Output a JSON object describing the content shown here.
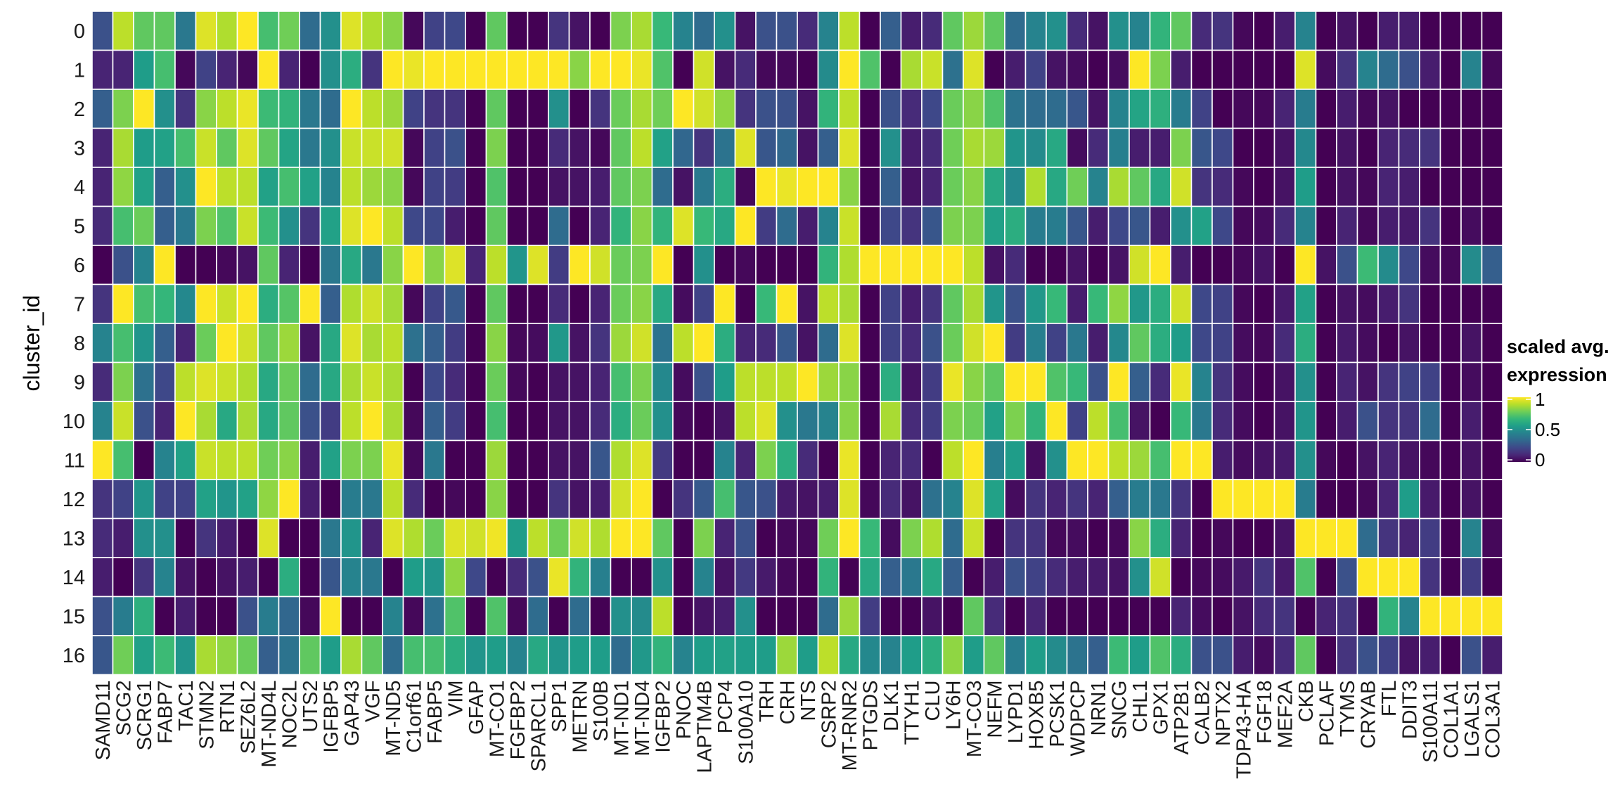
{
  "chart_data": {
    "type": "heatmap",
    "title": "",
    "xlabel": "",
    "ylabel": "cluster_id",
    "colormap": "viridis",
    "colormap_stops": [
      "#440154",
      "#482878",
      "#3e4989",
      "#31688e",
      "#26828e",
      "#1f9e89",
      "#35b779",
      "#6ece58",
      "#b5de2b",
      "#fde725"
    ],
    "cell_border_color": "#ffffff",
    "value_range": [
      0,
      1
    ],
    "legend": {
      "title_line1": "scaled avg.",
      "title_line2": "expression",
      "placement": "right",
      "ticks": [
        {
          "value": 1,
          "label": "1"
        },
        {
          "value": 0.5,
          "label": "0.5"
        },
        {
          "value": 0,
          "label": "0"
        }
      ]
    },
    "columns": [
      "SAMD11",
      "SCG2",
      "SCRG1",
      "FABP7",
      "TAC1",
      "STMN2",
      "RTN1",
      "SEZ6L2",
      "MT-ND4L",
      "NOC2L",
      "UTS2",
      "IGFBP5",
      "GAP43",
      "VGF",
      "MT-ND5",
      "C1orf61",
      "FABP5",
      "VIM",
      "GFAP",
      "MT-CO1",
      "FGFBP2",
      "SPARCL1",
      "SPP1",
      "METRN",
      "S100B",
      "MT-ND1",
      "MT-ND4",
      "IGFBP2",
      "PNOC",
      "LAPTM4B",
      "PCP4",
      "S100A10",
      "TRH",
      "CRH",
      "NTS",
      "CSRP2",
      "MT-RNR2",
      "PTGDS",
      "DLK1",
      "TTYH1",
      "CLU",
      "LY6H",
      "MT-CO3",
      "NEFM",
      "LYPD1",
      "HOXB5",
      "PCSK1",
      "WDPCP",
      "NRN1",
      "SNCG",
      "CHL1",
      "GPX1",
      "ATP2B1",
      "CALB2",
      "NPTX2",
      "TDP43-HA",
      "FGF18",
      "MEF2A",
      "CKB",
      "PCLAF",
      "TYMS",
      "CRYAB",
      "FTL",
      "DDIT3",
      "S100A11",
      "COL1A1",
      "LGALS1",
      "COL3A1"
    ],
    "rows": [
      "0",
      "1",
      "2",
      "3",
      "4",
      "5",
      "6",
      "7",
      "8",
      "9",
      "10",
      "11",
      "12",
      "13",
      "14",
      "15",
      "16"
    ],
    "values": [
      [
        0.25,
        0.9,
        0.75,
        0.75,
        0.4,
        0.95,
        0.88,
        1,
        0.7,
        0.78,
        0.35,
        0.5,
        0.95,
        0.88,
        0.82,
        0.02,
        0.2,
        0.22,
        0,
        0.75,
        0,
        0,
        0.15,
        0.05,
        0,
        0.8,
        0.87,
        0.67,
        0.45,
        0.35,
        0.5,
        0.05,
        0.25,
        0.25,
        0.12,
        0.45,
        0.9,
        0,
        0.3,
        0.08,
        0.12,
        0.75,
        0.85,
        0.75,
        0.35,
        0.45,
        0.5,
        0.12,
        0.05,
        0.5,
        0.45,
        0.65,
        0.75,
        0.12,
        0.15,
        0.02,
        0,
        0.08,
        0.45,
        0,
        0.05,
        0,
        0.08,
        0.08,
        0,
        0,
        0,
        0
      ],
      [
        0.1,
        0.1,
        0.55,
        0.7,
        0.02,
        0.2,
        0.1,
        0.02,
        1,
        0.1,
        0,
        0.5,
        0.62,
        0.15,
        1,
        0.97,
        1,
        1,
        1,
        1,
        1,
        1,
        1,
        0.82,
        1,
        1,
        0.97,
        0.72,
        0,
        0.93,
        0.05,
        0.12,
        0.02,
        0.02,
        0,
        0.48,
        1,
        0.72,
        0,
        0.87,
        0.92,
        0.37,
        0.95,
        0,
        0.08,
        0.2,
        0.05,
        0.03,
        0,
        0.03,
        1,
        0.8,
        0.08,
        0,
        0,
        0,
        0,
        0,
        0.95,
        0.03,
        0.15,
        0.45,
        0.35,
        0.25,
        0.08,
        0,
        0.45,
        0.02
      ],
      [
        0.3,
        0.8,
        1,
        0.5,
        0.15,
        0.82,
        0.9,
        0.97,
        0.68,
        0.65,
        0.4,
        0.35,
        1,
        0.9,
        0.85,
        0.2,
        0.15,
        0.15,
        0,
        0.75,
        0,
        0,
        0.5,
        0,
        0.15,
        0.77,
        0.87,
        0.78,
        1,
        0.93,
        0.83,
        0.15,
        0.25,
        0.25,
        0.05,
        0.65,
        0.9,
        0,
        0.25,
        0.12,
        0.22,
        0.77,
        0.82,
        0.72,
        0.38,
        0.35,
        0.35,
        0.27,
        0.05,
        0.45,
        0.58,
        0.63,
        0.42,
        0.2,
        0,
        0.02,
        0.02,
        0.1,
        0.42,
        0,
        0.08,
        0.02,
        0.05,
        0,
        0,
        0,
        0,
        0
      ],
      [
        0.1,
        0.87,
        0.55,
        0.57,
        0.7,
        0.92,
        0.75,
        0.95,
        0.75,
        0.58,
        0.4,
        0.5,
        0.92,
        0.92,
        0.93,
        0.02,
        0.2,
        0.25,
        0,
        0.8,
        0,
        0,
        0.12,
        0.05,
        0.02,
        0.75,
        0.9,
        0.57,
        0.33,
        0.15,
        0.38,
        0.95,
        0.27,
        0.33,
        0.05,
        0.3,
        0.95,
        0,
        0.5,
        0.08,
        0.12,
        0.78,
        0.87,
        0.85,
        0.52,
        0.48,
        0.6,
        0.03,
        0.12,
        0.43,
        0.08,
        0.08,
        0.8,
        0.27,
        0.22,
        0,
        0,
        0.05,
        0.47,
        0,
        0.05,
        0,
        0.1,
        0.12,
        0.15,
        0,
        0,
        0
      ],
      [
        0.1,
        0.83,
        0.57,
        0.3,
        0.5,
        1,
        0.9,
        0.9,
        0.57,
        0.7,
        0.57,
        0.45,
        0.9,
        0.85,
        0.82,
        0.02,
        0.2,
        0.18,
        0,
        0.72,
        0,
        0,
        0.05,
        0.05,
        0.08,
        0.75,
        0.8,
        0.35,
        0.05,
        0.4,
        0.62,
        0.02,
        1,
        0.97,
        1,
        1,
        0.82,
        0,
        0.3,
        0.05,
        0.1,
        0.77,
        0.82,
        0.6,
        0.47,
        0.88,
        0.6,
        0.78,
        0.45,
        0.87,
        0.75,
        0.6,
        0.93,
        0.15,
        0.12,
        0.02,
        0,
        0.05,
        0.55,
        0,
        0.05,
        0.02,
        0.1,
        0.08,
        0,
        0,
        0,
        0
      ],
      [
        0.12,
        0.7,
        0.77,
        0.3,
        0.4,
        0.8,
        0.72,
        0.92,
        0.68,
        0.5,
        0.15,
        0.57,
        0.95,
        1,
        0.9,
        0.22,
        0.22,
        0.08,
        0,
        0.75,
        0,
        0,
        0.35,
        0,
        0.1,
        0.65,
        0.82,
        0.65,
        0.95,
        0.67,
        0.6,
        1,
        0.18,
        0.35,
        0.08,
        0.45,
        0.92,
        0,
        0.22,
        0.15,
        0.27,
        0.8,
        0.8,
        0.57,
        0.62,
        0.42,
        0.42,
        0.27,
        0.08,
        0.22,
        0.27,
        0.08,
        0.5,
        0.57,
        0.22,
        0.02,
        0.03,
        0.12,
        0.45,
        0,
        0.1,
        0.02,
        0.08,
        0.07,
        0.15,
        0,
        0.03,
        0
      ],
      [
        0,
        0.25,
        0.45,
        1,
        0,
        0,
        0.02,
        0.05,
        0.75,
        0.1,
        0,
        0.4,
        0.6,
        0.4,
        0.82,
        1,
        0.82,
        0.95,
        0.1,
        0.9,
        0.52,
        0.95,
        0.18,
        1,
        0.93,
        0.77,
        0.8,
        1,
        0,
        0.5,
        0,
        0.02,
        0,
        0,
        0,
        0.65,
        0.88,
        1,
        1,
        1,
        1,
        1,
        0.9,
        0.05,
        0.12,
        0,
        0,
        0.05,
        0,
        0.05,
        0.93,
        1,
        0.08,
        0,
        0,
        0.02,
        0.05,
        0,
        1,
        0.05,
        0.25,
        0.68,
        0.48,
        0.22,
        0.03,
        0.02,
        0.48,
        0.3
      ],
      [
        0.15,
        1,
        0.7,
        0.66,
        0.47,
        1,
        0.92,
        1,
        0.62,
        0.73,
        1,
        0.3,
        0.88,
        0.93,
        0.86,
        0.02,
        0.2,
        0.28,
        0,
        0.75,
        0,
        0,
        0.12,
        0,
        0.1,
        0.77,
        0.82,
        0.6,
        0.03,
        0.2,
        1,
        0,
        0.67,
        1,
        0.05,
        0.9,
        0.87,
        0,
        0.2,
        0.08,
        0.15,
        0.75,
        0.87,
        0.52,
        0.25,
        0.53,
        0.67,
        0.08,
        0.67,
        0.83,
        0.53,
        0.62,
        0.93,
        0.22,
        0.2,
        0.02,
        0,
        0.07,
        0.57,
        0,
        0.05,
        0.03,
        0.08,
        0.15,
        0,
        0,
        0,
        0
      ],
      [
        0.45,
        0.7,
        0.52,
        0.3,
        0.1,
        0.77,
        1,
        0.93,
        0.75,
        0.85,
        0.05,
        0.6,
        0.95,
        0.87,
        0.9,
        0.37,
        0.3,
        0.18,
        0,
        0.82,
        0.02,
        0.03,
        0.53,
        0.05,
        0.15,
        0.85,
        0.93,
        0.38,
        0.9,
        1,
        0.62,
        0.1,
        0.12,
        0.28,
        0.05,
        0.35,
        0.95,
        0,
        0.2,
        0.12,
        0.25,
        0.77,
        0.93,
        1,
        0.18,
        0.43,
        0.2,
        0.4,
        0.08,
        0.47,
        0.75,
        0.62,
        0.55,
        0.22,
        0.2,
        0.03,
        0.02,
        0.12,
        0.62,
        0,
        0.07,
        0.03,
        0,
        0.05,
        0,
        0,
        0.05,
        0
      ],
      [
        0.12,
        0.8,
        0.37,
        0.22,
        0.9,
        0.95,
        0.92,
        0.88,
        0.6,
        0.77,
        0.35,
        0.6,
        0.87,
        0.92,
        0.87,
        0,
        0.22,
        0.12,
        0,
        0.77,
        0.02,
        0,
        0.05,
        0.05,
        0.1,
        0.7,
        0.8,
        0.47,
        0.03,
        0.25,
        0.55,
        0.9,
        0.9,
        0.9,
        1,
        0.85,
        0.82,
        0,
        0.62,
        0.05,
        0.18,
        0.97,
        0.82,
        0.75,
        1,
        1,
        0.72,
        0.67,
        0.25,
        1,
        0.3,
        0.12,
        0.97,
        0.45,
        0.15,
        0.03,
        0,
        0.05,
        0.5,
        0,
        0.1,
        0.05,
        0.15,
        0.2,
        0.2,
        0,
        0.03,
        0
      ],
      [
        0.45,
        0.92,
        0.25,
        0.1,
        1,
        0.87,
        0.6,
        0.87,
        0.6,
        0.75,
        0.25,
        0.18,
        0.9,
        1,
        0.87,
        0.02,
        0.3,
        0.18,
        0,
        0.7,
        0,
        0,
        0.05,
        0.05,
        0.12,
        0.62,
        0.77,
        0.5,
        0.02,
        0,
        0.05,
        0.9,
        0.95,
        0.5,
        0.4,
        0.45,
        0.82,
        0,
        0.87,
        0.12,
        0.18,
        0.8,
        0.77,
        0.57,
        0.8,
        0.65,
        1,
        0.2,
        0.9,
        0.7,
        0.05,
        0,
        0.67,
        0.4,
        0.12,
        0.03,
        0,
        0.05,
        0.52,
        0,
        0.08,
        0.25,
        0.15,
        0.15,
        0.35,
        0,
        0.08,
        0
      ],
      [
        1,
        0.7,
        0,
        0.45,
        0.57,
        0.92,
        0.9,
        0.9,
        0.78,
        0.82,
        0.08,
        0.57,
        0.8,
        0.8,
        0.97,
        0.02,
        0.4,
        0,
        0,
        0.85,
        0,
        0,
        0.05,
        0.05,
        0.27,
        0.88,
        0.95,
        0.17,
        0,
        0,
        0.45,
        0.1,
        0.8,
        0.62,
        0.12,
        0,
        0.97,
        0,
        0.1,
        0.12,
        0,
        0.9,
        1,
        0.43,
        0.55,
        0.03,
        0.5,
        1,
        1,
        0.9,
        0.85,
        0.7,
        1,
        1,
        0.08,
        0.03,
        0.05,
        0.07,
        0.5,
        0.02,
        0,
        0.05,
        0.1,
        0.05,
        0.02,
        0,
        0.05,
        0
      ],
      [
        0.15,
        0.2,
        0.52,
        0.2,
        0.2,
        0.57,
        0.52,
        0.57,
        0.83,
        1,
        0.08,
        0,
        0.42,
        0.4,
        0.9,
        0.12,
        0,
        0.02,
        0,
        0.82,
        0,
        0,
        0.15,
        0.05,
        0.08,
        0.93,
        1,
        0,
        0.15,
        0.28,
        0.7,
        0.27,
        0.25,
        0.07,
        0.05,
        0.08,
        0.95,
        0.02,
        0.12,
        0.05,
        0.37,
        0.45,
        0.95,
        0.57,
        0.03,
        0.15,
        0.1,
        0.15,
        0.1,
        0.3,
        0.42,
        0.4,
        0.15,
        0,
        1,
        1,
        1,
        1,
        0.42,
        0,
        0,
        0.02,
        0.1,
        0.55,
        0.07,
        0,
        0.05,
        0
      ],
      [
        0.12,
        0.08,
        0.5,
        0.5,
        0,
        0.15,
        0.08,
        0,
        0.95,
        0,
        0,
        0.4,
        0.52,
        0.1,
        0.95,
        0.88,
        0.77,
        0.95,
        0.93,
        0.98,
        0.55,
        0.9,
        0.78,
        0.93,
        0.88,
        1,
        1,
        0.75,
        0,
        0.8,
        0.1,
        0.25,
        0,
        0.02,
        0.02,
        0.78,
        1,
        0.67,
        0.03,
        0.8,
        0.88,
        0.35,
        0.92,
        0,
        0.15,
        0.15,
        0.02,
        0.03,
        0,
        0.02,
        0.82,
        0.62,
        0.1,
        0,
        0.02,
        0,
        0,
        0.05,
        1,
        1,
        1,
        0.35,
        0.15,
        0.1,
        0.18,
        0,
        0.45,
        0.02
      ],
      [
        0.08,
        0,
        0.15,
        0.45,
        0.05,
        0,
        0.05,
        0.08,
        0,
        0.62,
        0,
        0.27,
        0.45,
        0.4,
        0,
        0.55,
        0.52,
        0.83,
        0.22,
        0,
        0.12,
        0.25,
        0.97,
        0.65,
        0.43,
        0,
        0,
        0.5,
        0,
        0.45,
        0.05,
        0.17,
        0.07,
        0.02,
        0,
        0.65,
        0,
        0.6,
        0.3,
        0.4,
        0.6,
        0.3,
        0,
        0.08,
        0.25,
        0.2,
        0.12,
        0.08,
        0.07,
        0.05,
        0.5,
        0.93,
        0,
        0.02,
        0.03,
        0.07,
        0.15,
        0.07,
        0.72,
        0,
        0.25,
        1,
        1,
        1,
        0.15,
        0,
        0.18,
        0
      ],
      [
        0.25,
        0.42,
        0.63,
        0,
        0.08,
        0,
        0,
        0.25,
        0.42,
        0.33,
        0.02,
        1,
        0,
        0,
        0.45,
        0.02,
        0.37,
        0.72,
        0,
        0.72,
        0.02,
        0.35,
        0,
        0.35,
        0,
        0.5,
        0.48,
        0.9,
        0,
        0.05,
        0.08,
        0.5,
        0,
        0,
        0,
        0.35,
        0.85,
        0.18,
        0,
        0,
        0.05,
        0,
        0.75,
        0.12,
        0,
        0.1,
        0,
        0,
        0,
        0,
        0,
        0,
        0.1,
        0.03,
        0,
        0.05,
        0.12,
        0.15,
        0,
        0.1,
        0.15,
        0,
        0.65,
        0.45,
        1,
        1,
        1,
        1
      ],
      [
        0.27,
        0.78,
        0.57,
        0.68,
        0.52,
        0.87,
        0.83,
        0.77,
        0.3,
        0.38,
        0.75,
        0.55,
        0.87,
        0.75,
        0.35,
        0.7,
        0.7,
        0.62,
        0.52,
        0.55,
        0.45,
        0.6,
        0.52,
        0.55,
        0.55,
        0.35,
        0.53,
        0.65,
        0.45,
        0.55,
        0.57,
        0.55,
        0.55,
        0.85,
        0.55,
        0.9,
        0.6,
        0.47,
        0.45,
        0.55,
        0.62,
        0.83,
        0.55,
        0.75,
        0.42,
        0.55,
        0.48,
        0.38,
        0.3,
        0.68,
        0.55,
        0.72,
        0.62,
        0.25,
        0.25,
        0.08,
        0.03,
        0.12,
        0.75,
        0,
        0.15,
        0.25,
        0.2,
        0.05,
        0.08,
        0,
        0.25,
        0.08
      ]
    ]
  }
}
